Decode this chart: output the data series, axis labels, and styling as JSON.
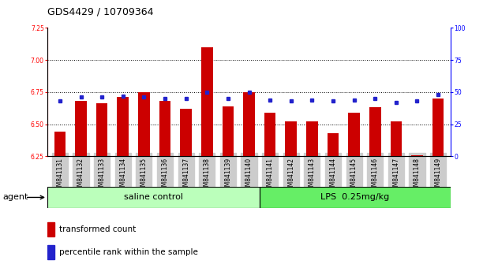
{
  "title": "GDS4429 / 10709364",
  "samples": [
    "GSM841131",
    "GSM841132",
    "GSM841133",
    "GSM841134",
    "GSM841135",
    "GSM841136",
    "GSM841137",
    "GSM841138",
    "GSM841139",
    "GSM841140",
    "GSM841141",
    "GSM841142",
    "GSM841143",
    "GSM841144",
    "GSM841145",
    "GSM841146",
    "GSM841147",
    "GSM841148",
    "GSM841149"
  ],
  "bar_values": [
    6.44,
    6.68,
    6.66,
    6.71,
    6.75,
    6.68,
    6.62,
    7.1,
    6.64,
    6.75,
    6.59,
    6.52,
    6.52,
    6.43,
    6.59,
    6.63,
    6.52,
    6.26,
    6.7
  ],
  "blue_values": [
    43,
    46,
    46,
    47,
    46,
    45,
    45,
    50,
    45,
    50,
    44,
    43,
    44,
    43,
    44,
    45,
    42,
    43,
    48
  ],
  "ylim_left": [
    6.25,
    7.25
  ],
  "ylim_right": [
    0,
    100
  ],
  "yticks_left": [
    6.25,
    6.5,
    6.75,
    7.0,
    7.25
  ],
  "yticks_right": [
    0,
    25,
    50,
    75,
    100
  ],
  "bar_color": "#cc0000",
  "blue_color": "#2222cc",
  "bar_baseline": 6.25,
  "saline_label": "saline control",
  "lps_label": "LPS  0.25mg/kg",
  "n_saline": 10,
  "n_lps": 9,
  "agent_label": "agent",
  "legend_bar_label": "transformed count",
  "legend_blue_label": "percentile rank within the sample",
  "saline_color": "#bbffbb",
  "lps_color": "#66ee66",
  "title_fontsize": 9,
  "tick_fontsize": 5.5,
  "band_fontsize": 8,
  "legend_fontsize": 7.5
}
